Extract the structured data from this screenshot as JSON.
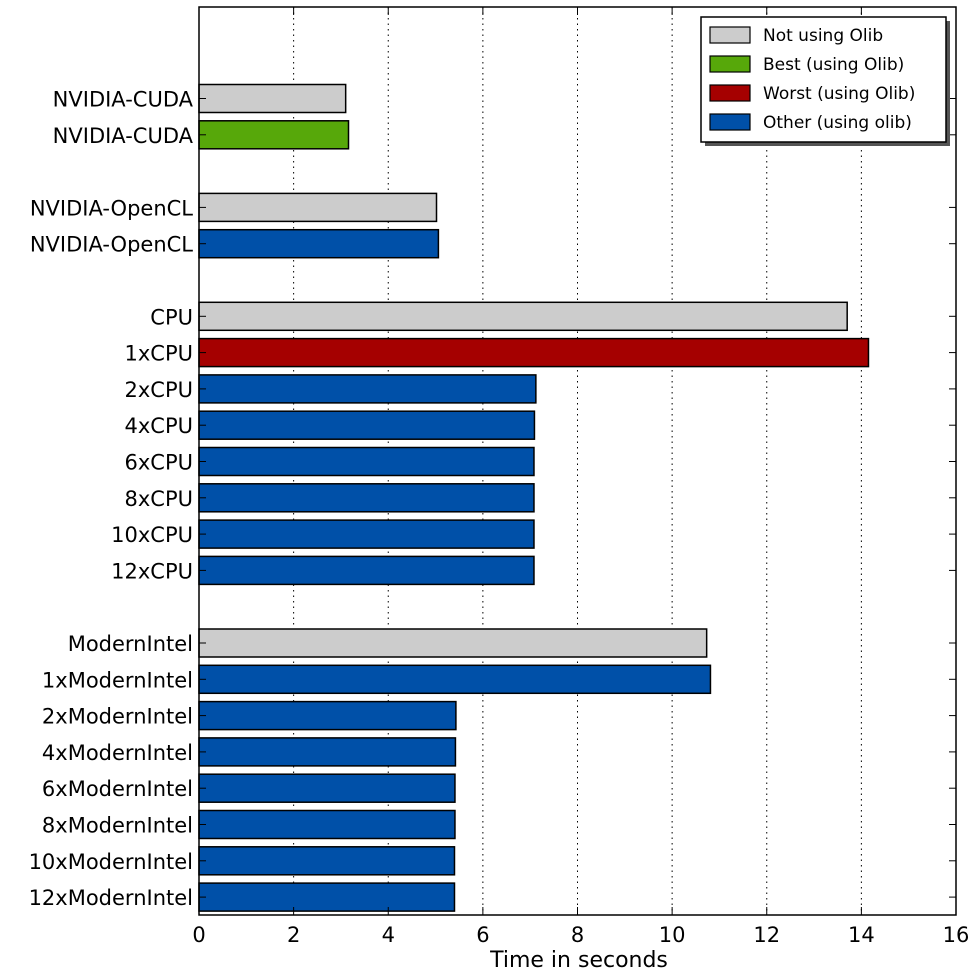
{
  "chart_data": {
    "type": "bar",
    "orientation": "horizontal",
    "xlabel": "Time in seconds",
    "xlim": [
      0,
      16
    ],
    "xticks": [
      0,
      2,
      4,
      6,
      8,
      10,
      12,
      14,
      16
    ],
    "grid": "vertical dotted",
    "legend": {
      "placement": "top-right",
      "entries": [
        {
          "key": "not_using",
          "label": "Not using Olib",
          "color": "#cccccc"
        },
        {
          "key": "best",
          "label": "Best (using Olib)",
          "color": "#57a80a"
        },
        {
          "key": "worst",
          "label": "Worst (using Olib)",
          "color": "#a50000"
        },
        {
          "key": "other",
          "label": "Other (using olib)",
          "color": "#0050a8"
        }
      ]
    },
    "groups": [
      [
        {
          "label": "NVIDIA-CUDA",
          "value": 3.1,
          "kind": "not_using"
        },
        {
          "label": "NVIDIA-CUDA",
          "value": 3.16,
          "kind": "best"
        }
      ],
      [
        {
          "label": "NVIDIA-OpenCL",
          "value": 5.02,
          "kind": "not_using"
        },
        {
          "label": "NVIDIA-OpenCL",
          "value": 5.06,
          "kind": "other"
        }
      ],
      [
        {
          "label": "CPU",
          "value": 13.7,
          "kind": "not_using"
        },
        {
          "label": "1xCPU",
          "value": 14.15,
          "kind": "worst"
        },
        {
          "label": "2xCPU",
          "value": 7.12,
          "kind": "other"
        },
        {
          "label": "4xCPU",
          "value": 7.09,
          "kind": "other"
        },
        {
          "label": "6xCPU",
          "value": 7.08,
          "kind": "other"
        },
        {
          "label": "8xCPU",
          "value": 7.08,
          "kind": "other"
        },
        {
          "label": "10xCPU",
          "value": 7.08,
          "kind": "other"
        },
        {
          "label": "12xCPU",
          "value": 7.08,
          "kind": "other"
        }
      ],
      [
        {
          "label": "ModernIntel",
          "value": 10.73,
          "kind": "not_using"
        },
        {
          "label": "1xModernIntel",
          "value": 10.81,
          "kind": "other"
        },
        {
          "label": "2xModernIntel",
          "value": 5.43,
          "kind": "other"
        },
        {
          "label": "4xModernIntel",
          "value": 5.42,
          "kind": "other"
        },
        {
          "label": "6xModernIntel",
          "value": 5.41,
          "kind": "other"
        },
        {
          "label": "8xModernIntel",
          "value": 5.41,
          "kind": "other"
        },
        {
          "label": "10xModernIntel",
          "value": 5.4,
          "kind": "other"
        },
        {
          "label": "12xModernIntel",
          "value": 5.4,
          "kind": "other"
        }
      ]
    ]
  }
}
